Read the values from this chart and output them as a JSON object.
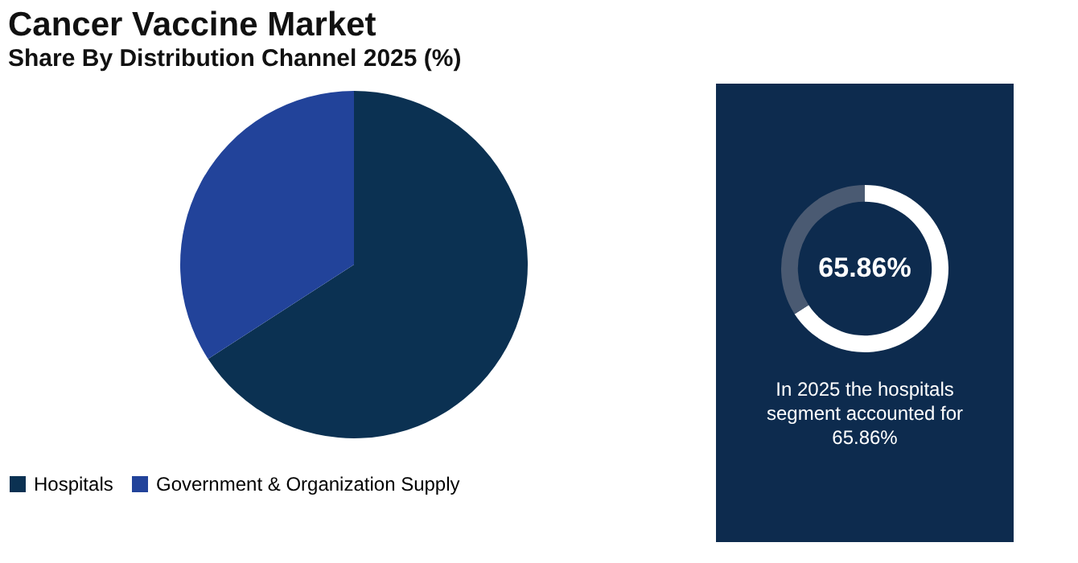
{
  "chart_data": [
    {
      "type": "pie",
      "title": "Cancer Vaccine Market",
      "subtitle": "Share By Distribution Channel 2025 (%)",
      "categories": [
        "Hospitals",
        "Government & Organization Supply"
      ],
      "values": [
        65.86,
        34.14
      ],
      "colors": [
        "#0b3152",
        "#22439a"
      ],
      "legend": "bottom"
    },
    {
      "type": "donut",
      "categories": [
        null,
        null
      ],
      "values": [
        65.86,
        34.14
      ],
      "colors": [
        "#ffffff",
        "#4a5a72"
      ],
      "annotations": [
        "65.86%",
        "In 2025 the hospitals segment accounted for 65.86%"
      ]
    }
  ]
}
